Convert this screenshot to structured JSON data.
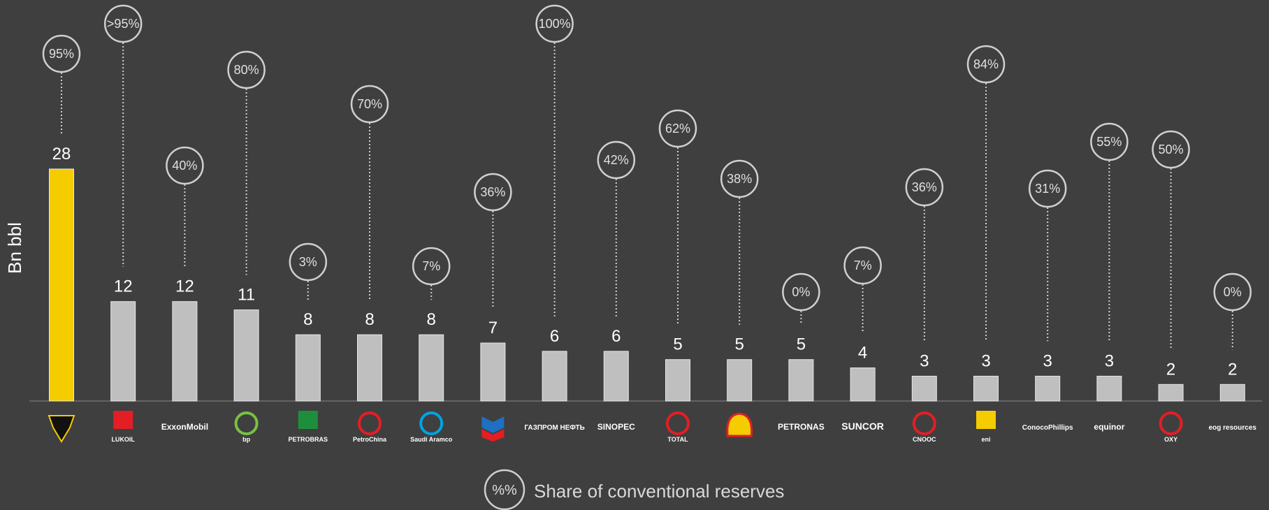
{
  "chart_data": {
    "type": "bar",
    "ylabel": "Bn  bbl",
    "legend": {
      "symbol": "%%",
      "label": "Share of conventional reserves"
    },
    "categories": [
      "Rosneft",
      "LUKOIL",
      "ExxonMobil",
      "bp",
      "Petrobras",
      "PetroChina",
      "Saudi Aramco",
      "Chevron",
      "Gazprom Neft",
      "Sinopec",
      "Total",
      "Shell",
      "Petronas",
      "Suncor",
      "CNOOC",
      "eni",
      "ConocoPhillips",
      "equinor",
      "OXY",
      "eog resources"
    ],
    "values": [
      28,
      12,
      12,
      11,
      8,
      8,
      8,
      7,
      6,
      6,
      5,
      5,
      5,
      4,
      3,
      3,
      3,
      3,
      2,
      2
    ],
    "value_labels": [
      "28",
      "12",
      "12",
      "11",
      "8",
      "8",
      "8",
      "7",
      "6",
      "6",
      "5",
      "5",
      "5",
      "4",
      "3",
      "3",
      "3",
      "3",
      "2",
      "2"
    ],
    "share_labels": [
      "95%",
      ">95%",
      "40%",
      "80%",
      "3%",
      "70%",
      "7%",
      "36%",
      "100%",
      "42%",
      "62%",
      "38%",
      "0%",
      "7%",
      "36%",
      "84%",
      "31%",
      "55%",
      "50%",
      "0%"
    ],
    "highlight_index": 0,
    "colors": {
      "highlight": "#f5cc00",
      "bar": "#bfbfbf",
      "background": "#3f3f3f",
      "circle": "#d0d0d0"
    },
    "logos": [
      {
        "text": "",
        "color": "#f5cc00",
        "icon": "rosneft-logo-icon"
      },
      {
        "text": "LUKOIL",
        "color": "#e31e24",
        "icon": "lukoil-logo-icon"
      },
      {
        "text": "ExxonMobil",
        "color": "#e31e24",
        "icon": "exxonmobil-logo-icon"
      },
      {
        "text": "bp",
        "color": "#7ac143",
        "icon": "bp-logo-icon"
      },
      {
        "text": "PETROBRAS",
        "color": "#1d8f3c",
        "icon": "petrobras-logo-icon"
      },
      {
        "text": "PetroChina",
        "color": "#e31e24",
        "icon": "petrochina-logo-icon"
      },
      {
        "text": "Saudi Aramco",
        "color": "#00a3e0",
        "icon": "aramco-logo-icon"
      },
      {
        "text": "",
        "color": "#e31e24",
        "icon": "chevron-logo-icon"
      },
      {
        "text": "ГАЗПРОМ НЕФТЬ",
        "color": "#1f8fd6",
        "icon": "gazprom-neft-logo-icon"
      },
      {
        "text": "SINOPEC",
        "color": "#e31e24",
        "icon": "sinopec-logo-icon"
      },
      {
        "text": "TOTAL",
        "color": "#e31e24",
        "icon": "total-logo-icon"
      },
      {
        "text": "",
        "color": "#f5cc00",
        "icon": "shell-logo-icon"
      },
      {
        "text": "PETRONAS",
        "color": "#00a19c",
        "icon": "petronas-logo-icon"
      },
      {
        "text": "SUNCOR",
        "color": "#1f5ea8",
        "icon": "suncor-logo-icon"
      },
      {
        "text": "CNOOC",
        "color": "#e31e24",
        "icon": "cnooc-logo-icon"
      },
      {
        "text": "eni",
        "color": "#f5cc00",
        "icon": "eni-logo-icon"
      },
      {
        "text": "ConocoPhillips",
        "color": "#000000",
        "icon": "conocophillips-logo-icon"
      },
      {
        "text": "equinor",
        "color": "#e31e24",
        "icon": "equinor-logo-icon"
      },
      {
        "text": "OXY",
        "color": "#e31e24",
        "icon": "oxy-logo-icon"
      },
      {
        "text": "eog resources",
        "color": "#e31e24",
        "icon": "eog-logo-icon"
      }
    ]
  }
}
